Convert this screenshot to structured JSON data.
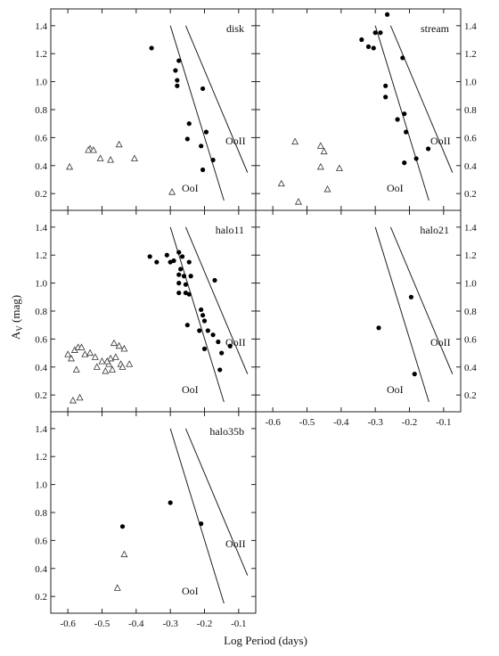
{
  "figure": {
    "ylabel": "A",
    "ylabel_sub": "V",
    "ylabel_unit": " (mag)",
    "xlabel": "Log Period (days)",
    "xticks": [
      -0.6,
      -0.5,
      -0.4,
      -0.3,
      -0.2,
      -0.1
    ],
    "xtick_labels": [
      "-0.6",
      "-0.5",
      "-0.4",
      "-0.3",
      "-0.2",
      "-0.1"
    ],
    "yticks": [
      0.2,
      0.4,
      0.6,
      0.8,
      1.0,
      1.2,
      1.4
    ],
    "ytick_labels": [
      "0.2",
      "0.4",
      "0.6",
      "0.8",
      "1.0",
      "1.2",
      "1.4"
    ],
    "line_labels": {
      "ooi": "OoI",
      "ooii": "OoII"
    }
  },
  "chart_data": [
    {
      "type": "scatter",
      "title": "disk",
      "xlim": [
        -0.65,
        -0.05
      ],
      "ylim": [
        0.08,
        1.52
      ],
      "series": [
        {
          "marker": "filled-circle",
          "points": [
            [
              -0.355,
              1.24
            ],
            [
              -0.275,
              1.15
            ],
            [
              -0.285,
              1.08
            ],
            [
              -0.28,
              1.01
            ],
            [
              -0.28,
              0.97
            ],
            [
              -0.205,
              0.95
            ],
            [
              -0.245,
              0.7
            ],
            [
              -0.195,
              0.64
            ],
            [
              -0.25,
              0.59
            ],
            [
              -0.21,
              0.54
            ],
            [
              -0.175,
              0.44
            ],
            [
              -0.205,
              0.37
            ]
          ]
        },
        {
          "marker": "open-triangle",
          "points": [
            [
              -0.595,
              0.39
            ],
            [
              -0.535,
              0.52
            ],
            [
              -0.54,
              0.51
            ],
            [
              -0.525,
              0.51
            ],
            [
              -0.45,
              0.55
            ],
            [
              -0.505,
              0.45
            ],
            [
              -0.475,
              0.44
            ],
            [
              -0.405,
              0.45
            ],
            [
              -0.295,
              0.21
            ]
          ]
        }
      ],
      "lines": [
        {
          "name": "OoI",
          "from": [
            -0.3,
            1.4
          ],
          "to": [
            -0.143,
            0.15
          ]
        },
        {
          "name": "OoII",
          "from": [
            -0.255,
            1.4
          ],
          "to": [
            -0.074,
            0.35
          ]
        }
      ]
    },
    {
      "type": "scatter",
      "title": "stream",
      "xlim": [
        -0.65,
        -0.05
      ],
      "ylim": [
        0.08,
        1.52
      ],
      "series": [
        {
          "marker": "filled-circle",
          "points": [
            [
              -0.265,
              1.48
            ],
            [
              -0.34,
              1.3
            ],
            [
              -0.3,
              1.35
            ],
            [
              -0.285,
              1.35
            ],
            [
              -0.32,
              1.25
            ],
            [
              -0.305,
              1.24
            ],
            [
              -0.22,
              1.17
            ],
            [
              -0.27,
              0.97
            ],
            [
              -0.27,
              0.89
            ],
            [
              -0.215,
              0.77
            ],
            [
              -0.235,
              0.73
            ],
            [
              -0.21,
              0.64
            ],
            [
              -0.145,
              0.52
            ],
            [
              -0.18,
              0.45
            ],
            [
              -0.215,
              0.42
            ]
          ]
        },
        {
          "marker": "open-triangle",
          "points": [
            [
              -0.575,
              0.27
            ],
            [
              -0.535,
              0.57
            ],
            [
              -0.46,
              0.54
            ],
            [
              -0.45,
              0.5
            ],
            [
              -0.46,
              0.39
            ],
            [
              -0.405,
              0.38
            ],
            [
              -0.44,
              0.23
            ],
            [
              -0.525,
              0.14
            ]
          ]
        }
      ],
      "lines": [
        {
          "name": "OoI",
          "from": [
            -0.3,
            1.4
          ],
          "to": [
            -0.143,
            0.15
          ]
        },
        {
          "name": "OoII",
          "from": [
            -0.255,
            1.4
          ],
          "to": [
            -0.074,
            0.35
          ]
        }
      ]
    },
    {
      "type": "scatter",
      "title": "halo11",
      "xlim": [
        -0.65,
        -0.05
      ],
      "ylim": [
        0.08,
        1.52
      ],
      "series": [
        {
          "marker": "filled-circle",
          "points": [
            [
              -0.36,
              1.19
            ],
            [
              -0.34,
              1.15
            ],
            [
              -0.31,
              1.2
            ],
            [
              -0.275,
              1.22
            ],
            [
              -0.3,
              1.15
            ],
            [
              -0.29,
              1.16
            ],
            [
              -0.265,
              1.19
            ],
            [
              -0.245,
              1.15
            ],
            [
              -0.27,
              1.1
            ],
            [
              -0.26,
              1.05
            ],
            [
              -0.275,
              1.06
            ],
            [
              -0.24,
              1.05
            ],
            [
              -0.275,
              1.0
            ],
            [
              -0.255,
              0.99
            ],
            [
              -0.275,
              0.93
            ],
            [
              -0.255,
              0.93
            ],
            [
              -0.245,
              0.92
            ],
            [
              -0.17,
              1.02
            ],
            [
              -0.21,
              0.81
            ],
            [
              -0.205,
              0.77
            ],
            [
              -0.2,
              0.73
            ],
            [
              -0.215,
              0.66
            ],
            [
              -0.25,
              0.7
            ],
            [
              -0.19,
              0.66
            ],
            [
              -0.175,
              0.63
            ],
            [
              -0.16,
              0.58
            ],
            [
              -0.2,
              0.53
            ],
            [
              -0.125,
              0.55
            ],
            [
              -0.15,
              0.5
            ],
            [
              -0.155,
              0.38
            ]
          ]
        },
        {
          "marker": "open-triangle",
          "points": [
            [
              -0.6,
              0.49
            ],
            [
              -0.59,
              0.46
            ],
            [
              -0.58,
              0.52
            ],
            [
              -0.57,
              0.54
            ],
            [
              -0.56,
              0.54
            ],
            [
              -0.575,
              0.38
            ],
            [
              -0.55,
              0.49
            ],
            [
              -0.535,
              0.5
            ],
            [
              -0.52,
              0.47
            ],
            [
              -0.515,
              0.4
            ],
            [
              -0.5,
              0.44
            ],
            [
              -0.48,
              0.42
            ],
            [
              -0.475,
              0.46
            ],
            [
              -0.47,
              0.38
            ],
            [
              -0.465,
              0.57
            ],
            [
              -0.46,
              0.47
            ],
            [
              -0.45,
              0.55
            ],
            [
              -0.445,
              0.42
            ],
            [
              -0.435,
              0.53
            ],
            [
              -0.44,
              0.4
            ],
            [
              -0.42,
              0.42
            ],
            [
              -0.485,
              0.44
            ],
            [
              -0.49,
              0.37
            ],
            [
              -0.565,
              0.18
            ],
            [
              -0.585,
              0.16
            ]
          ]
        }
      ],
      "lines": [
        {
          "name": "OoI",
          "from": [
            -0.3,
            1.4
          ],
          "to": [
            -0.143,
            0.15
          ]
        },
        {
          "name": "OoII",
          "from": [
            -0.255,
            1.4
          ],
          "to": [
            -0.074,
            0.35
          ]
        }
      ]
    },
    {
      "type": "scatter",
      "title": "halo21",
      "xlim": [
        -0.65,
        -0.05
      ],
      "ylim": [
        0.08,
        1.52
      ],
      "series": [
        {
          "marker": "filled-circle",
          "points": [
            [
              -0.195,
              0.9
            ],
            [
              -0.29,
              0.68
            ],
            [
              -0.185,
              0.35
            ]
          ]
        },
        {
          "marker": "open-triangle",
          "points": []
        }
      ],
      "lines": [
        {
          "name": "OoI",
          "from": [
            -0.3,
            1.4
          ],
          "to": [
            -0.143,
            0.15
          ]
        },
        {
          "name": "OoII",
          "from": [
            -0.255,
            1.4
          ],
          "to": [
            -0.074,
            0.35
          ]
        }
      ]
    },
    {
      "type": "scatter",
      "title": "halo35b",
      "xlim": [
        -0.65,
        -0.05
      ],
      "ylim": [
        0.08,
        1.52
      ],
      "series": [
        {
          "marker": "filled-circle",
          "points": [
            [
              -0.3,
              0.87
            ],
            [
              -0.21,
              0.72
            ],
            [
              -0.44,
              0.7
            ]
          ]
        },
        {
          "marker": "open-triangle",
          "points": [
            [
              -0.435,
              0.5
            ],
            [
              -0.455,
              0.26
            ]
          ]
        }
      ],
      "lines": [
        {
          "name": "OoI",
          "from": [
            -0.3,
            1.4
          ],
          "to": [
            -0.143,
            0.15
          ]
        },
        {
          "name": "OoII",
          "from": [
            -0.255,
            1.4
          ],
          "to": [
            -0.074,
            0.35
          ]
        }
      ]
    }
  ]
}
